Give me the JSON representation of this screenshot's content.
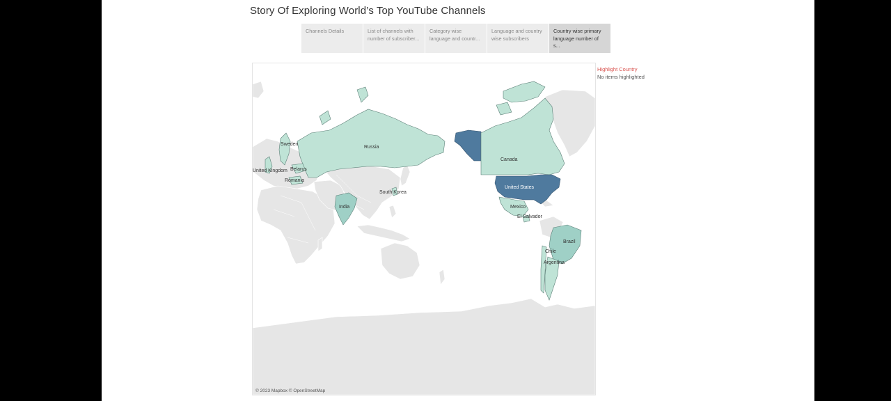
{
  "story": {
    "title": "Story Of Exploring World’s Top YouTube Channels",
    "points": [
      {
        "label": "Channels Details",
        "active": false
      },
      {
        "label": "List of channels with number of subscriber...",
        "active": false
      },
      {
        "label": "Category wise language and countr...",
        "active": false
      },
      {
        "label": "Language and country wise subscribers",
        "active": false
      },
      {
        "label": "Country wise primary language number of s...",
        "active": true
      }
    ]
  },
  "map": {
    "attribution": "© 2023 Mapbox © OpenStreetMap",
    "country_labels": {
      "russia": "Russia",
      "canada": "Canada",
      "united_states": "United States",
      "mexico": "Mexico",
      "el_salvador": "El Salvador",
      "brazil": "Brazil",
      "chile": "Chile",
      "argentina": "Argentina",
      "india": "India",
      "south_korea": "South Korea",
      "sweden": "Sweden",
      "united_kingdom": "United Kingdom",
      "belarus": "Belarus",
      "romania": "Romania"
    },
    "highlight_levels": {
      "dark": [
        "United States",
        "Alaska (United States)"
      ],
      "mid": [
        "India",
        "Brazil"
      ],
      "light": [
        "Russia",
        "Canada",
        "Mexico",
        "El Salvador",
        "Chile",
        "Argentina",
        "South Korea",
        "Sweden",
        "United Kingdom",
        "Belarus",
        "Romania"
      ]
    },
    "colors": {
      "base_land": "#e6e6e6",
      "light": "#bfe3d6",
      "mid": "#9fd0c6",
      "dark": "#4f7a9e"
    }
  },
  "legend": {
    "title": "Highlight Country",
    "empty_text": "No items highlighted"
  }
}
